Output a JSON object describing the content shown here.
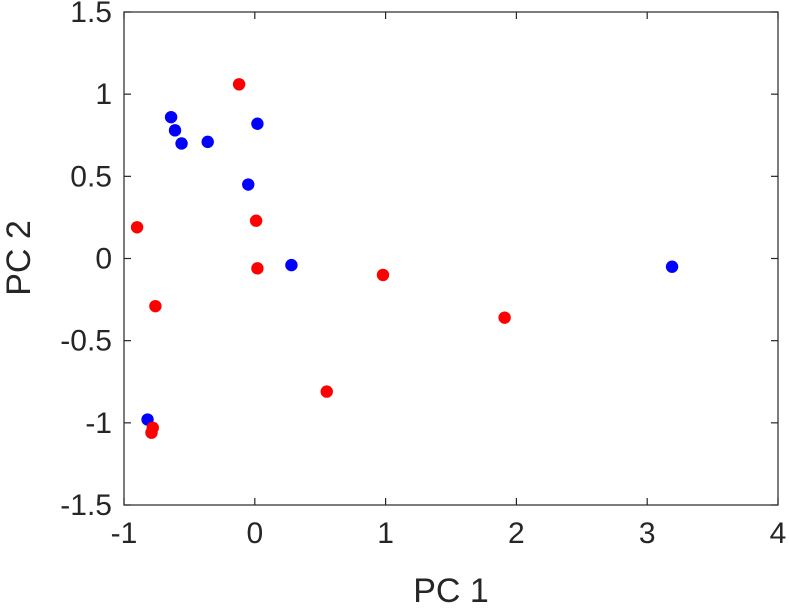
{
  "chart_data": {
    "type": "scatter",
    "title": "",
    "xlabel": "PC 1",
    "ylabel": "PC 2",
    "xlim": [
      -1,
      4
    ],
    "ylim": [
      -1.5,
      1.5
    ],
    "xticks": [
      "-1",
      "0",
      "1",
      "2",
      "3",
      "4"
    ],
    "yticks": [
      "1.5",
      "1",
      "0.5",
      "0",
      "-0.5",
      "-1",
      "-1.5"
    ],
    "grid": false,
    "legend": "none",
    "series": [
      {
        "color": "#0000ff",
        "points": [
          [
            -0.64,
            0.86
          ],
          [
            -0.61,
            0.78
          ],
          [
            -0.56,
            0.7
          ],
          [
            -0.36,
            0.71
          ],
          [
            0.02,
            0.82
          ],
          [
            -0.05,
            0.45
          ],
          [
            0.28,
            -0.04
          ],
          [
            -0.82,
            -0.98
          ],
          [
            3.19,
            -0.05
          ]
        ]
      },
      {
        "color": "#ff0000",
        "points": [
          [
            -0.12,
            1.06
          ],
          [
            -0.9,
            0.19
          ],
          [
            0.01,
            0.23
          ],
          [
            0.02,
            -0.06
          ],
          [
            -0.76,
            -0.29
          ],
          [
            0.98,
            -0.1
          ],
          [
            1.91,
            -0.36
          ],
          [
            0.55,
            -0.81
          ],
          [
            -0.78,
            -1.03
          ],
          [
            -0.79,
            -1.06
          ]
        ]
      }
    ]
  }
}
